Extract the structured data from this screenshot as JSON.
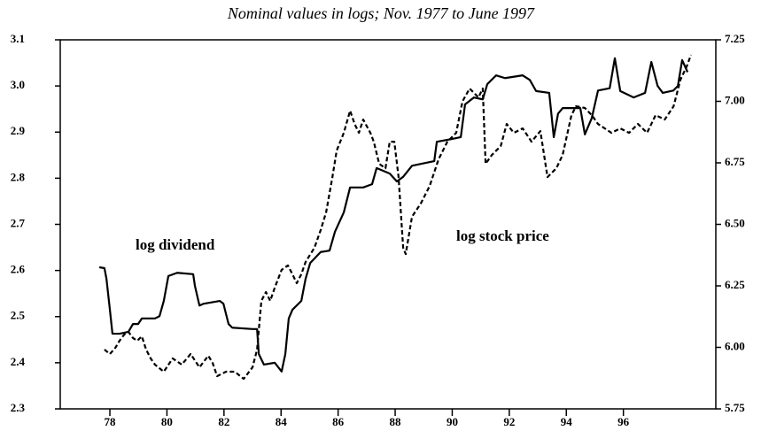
{
  "chart_data": {
    "type": "line",
    "title": "Nominal values in logs; Nov. 1977 to June 1997",
    "annotations": [
      "log dividend",
      "log stock price"
    ],
    "xlim": [
      76.26,
      99.24
    ],
    "xticks": [
      78,
      80,
      82,
      84,
      86,
      88,
      90,
      92,
      94,
      96
    ],
    "ylim": [
      2.3,
      3.1
    ],
    "yticks": [
      2.3,
      2.4,
      2.5,
      2.6,
      2.7,
      2.8,
      2.9,
      {
        "value": 3,
        "label": "3.0"
      },
      3.1
    ],
    "y2lim": [
      5.75,
      7.25
    ],
    "y2ticks": [
      5.75,
      {
        "value": 6,
        "label": "6.00"
      },
      6.25,
      {
        "value": 6.5,
        "label": "6.50"
      },
      6.75,
      {
        "value": 7,
        "label": "7.00"
      },
      7.25
    ],
    "series": [
      {
        "name": "log dividend",
        "color": "#000000",
        "style": "solid",
        "axis": "y",
        "x": [
          77.63,
          77.81,
          77.88,
          78.0,
          78.09,
          78.34,
          78.65,
          78.81,
          78.99,
          79.12,
          79.58,
          79.74,
          79.89,
          80.05,
          80.36,
          80.92,
          80.98,
          81.14,
          81.29,
          81.85,
          81.98,
          82.16,
          82.29,
          83.0,
          83.16,
          83.22,
          83.4,
          83.78,
          84.02,
          84.15,
          84.27,
          84.4,
          84.71,
          84.86,
          85.02,
          85.39,
          85.7,
          85.89,
          86.2,
          86.42,
          86.88,
          87.19,
          87.35,
          87.81,
          88.06,
          88.28,
          88.59,
          88.9,
          89.37,
          89.46,
          89.99,
          90.3,
          90.45,
          90.76,
          91.07,
          91.23,
          91.54,
          91.85,
          92.47,
          92.72,
          92.94,
          93.4,
          93.56,
          93.71,
          93.87,
          94.49,
          94.65,
          94.89,
          95.11,
          95.52,
          95.7,
          95.89,
          96.36,
          96.76,
          96.98,
          97.2,
          97.38,
          97.75,
          97.91,
          98.06,
          98.25
        ],
        "values": [
          2.607,
          2.605,
          2.582,
          2.515,
          2.463,
          2.463,
          2.467,
          2.484,
          2.484,
          2.496,
          2.496,
          2.501,
          2.534,
          2.588,
          2.595,
          2.592,
          2.567,
          2.524,
          2.528,
          2.534,
          2.528,
          2.484,
          2.476,
          2.473,
          2.473,
          2.419,
          2.396,
          2.4,
          2.381,
          2.419,
          2.496,
          2.515,
          2.534,
          2.582,
          2.616,
          2.64,
          2.643,
          2.684,
          2.726,
          2.78,
          2.78,
          2.787,
          2.822,
          2.81,
          2.793,
          2.803,
          2.827,
          2.831,
          2.837,
          2.879,
          2.885,
          2.889,
          2.96,
          2.975,
          2.971,
          3.004,
          3.023,
          3.017,
          3.023,
          3.013,
          2.989,
          2.985,
          2.889,
          2.94,
          2.952,
          2.952,
          2.895,
          2.93,
          2.99,
          2.995,
          3.06,
          2.989,
          2.975,
          2.985,
          3.052,
          3.0,
          2.985,
          2.99,
          3.0,
          3.056,
          3.03
        ]
      },
      {
        "name": "log stock price",
        "color": "#000000",
        "style": "dashed",
        "axis": "y2",
        "x": [
          77.81,
          78.0,
          78.19,
          78.34,
          78.5,
          78.65,
          78.81,
          78.96,
          79.12,
          79.27,
          79.43,
          79.58,
          79.89,
          80.2,
          80.52,
          80.83,
          81.14,
          81.45,
          81.6,
          81.76,
          82.07,
          82.38,
          82.69,
          83.0,
          83.16,
          83.31,
          83.47,
          83.62,
          83.78,
          84.02,
          84.24,
          84.4,
          84.55,
          84.71,
          84.86,
          85.17,
          85.39,
          85.58,
          85.8,
          85.95,
          86.2,
          86.42,
          86.58,
          86.73,
          86.88,
          87.13,
          87.25,
          87.44,
          87.66,
          87.81,
          87.97,
          88.12,
          88.28,
          88.37,
          88.59,
          88.9,
          89.21,
          89.52,
          89.83,
          90.14,
          90.36,
          90.61,
          90.92,
          91.07,
          91.17,
          91.39,
          91.7,
          91.91,
          92.16,
          92.47,
          92.78,
          93.09,
          93.34,
          93.65,
          93.87,
          94.18,
          94.34,
          94.65,
          94.89,
          95.11,
          95.58,
          95.89,
          96.2,
          96.51,
          96.83,
          97.13,
          97.45,
          97.76,
          98.0,
          98.22,
          98.37
        ],
        "values": [
          5.991,
          5.973,
          5.998,
          6.027,
          6.052,
          6.063,
          6.038,
          6.027,
          6.045,
          5.991,
          5.955,
          5.93,
          5.901,
          5.955,
          5.93,
          5.973,
          5.919,
          5.966,
          5.937,
          5.883,
          5.901,
          5.901,
          5.872,
          5.919,
          5.991,
          6.189,
          6.225,
          6.189,
          6.243,
          6.315,
          6.333,
          6.297,
          6.261,
          6.297,
          6.347,
          6.405,
          6.477,
          6.549,
          6.692,
          6.8,
          6.872,
          6.962,
          6.908,
          6.872,
          6.926,
          6.872,
          6.836,
          6.746,
          6.728,
          6.836,
          6.836,
          6.692,
          6.405,
          6.379,
          6.531,
          6.585,
          6.656,
          6.764,
          6.836,
          6.872,
          7.0,
          7.052,
          7.016,
          7.052,
          6.746,
          6.782,
          6.818,
          6.908,
          6.872,
          6.89,
          6.836,
          6.879,
          6.692,
          6.728,
          6.782,
          6.944,
          6.98,
          6.973,
          6.944,
          6.908,
          6.872,
          6.89,
          6.872,
          6.908,
          6.872,
          6.944,
          6.926,
          6.98,
          7.088,
          7.142,
          7.189
        ]
      }
    ]
  }
}
